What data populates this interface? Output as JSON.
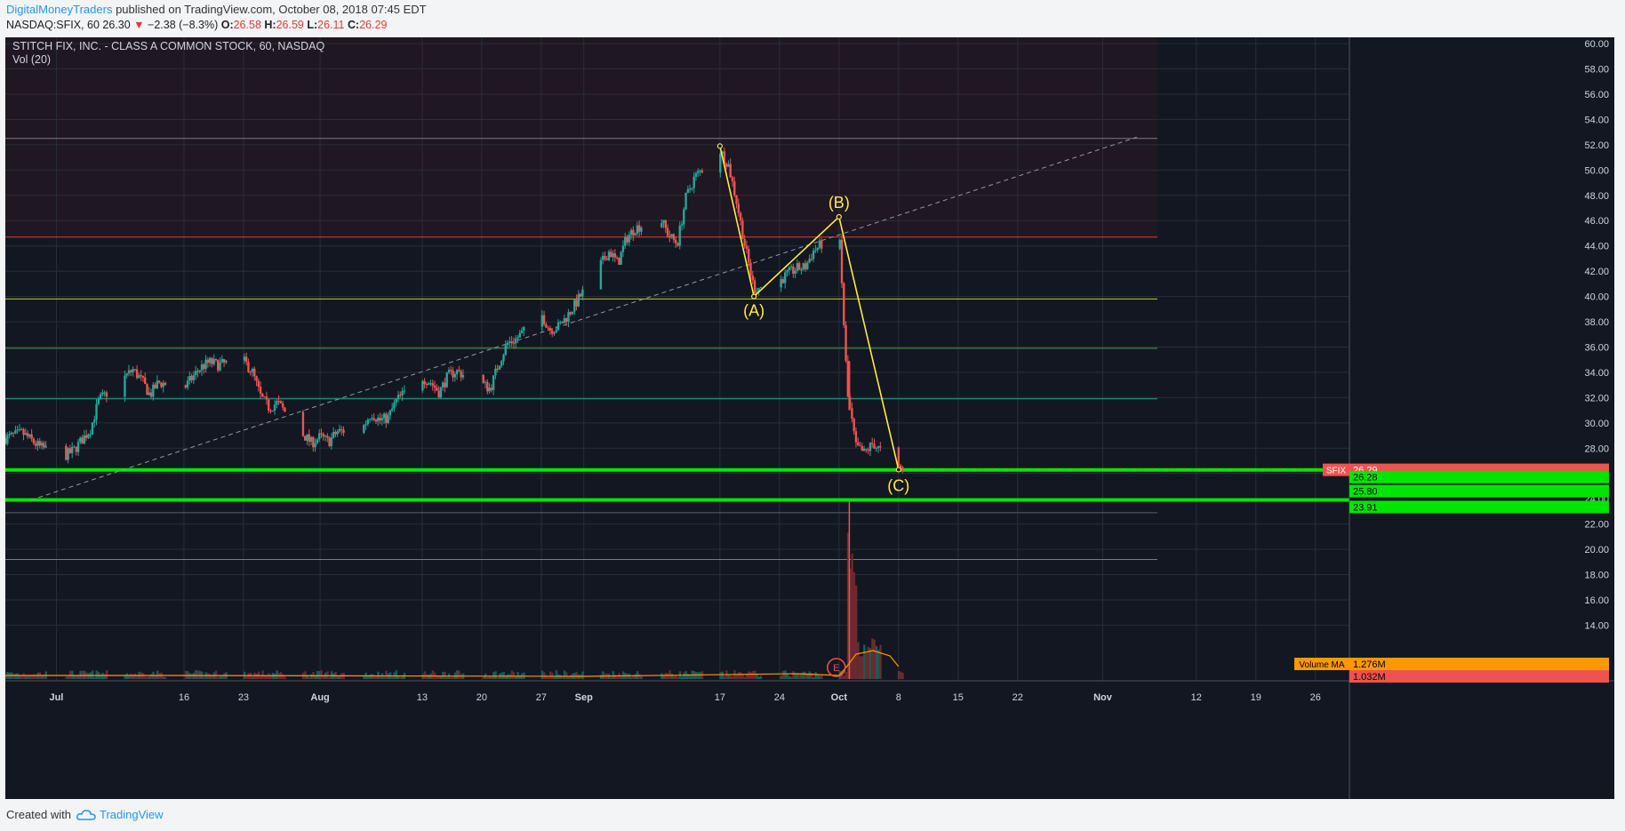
{
  "header": {
    "author": "DigitalMoneyTraders",
    "published": "published on TradingView.com, October 08, 2018 07:45 EDT",
    "symbol": "NASDAQ:SFIX, 60",
    "last": "26.30",
    "change": "−2.38 (−8.3%)",
    "o_label": "O:",
    "o": "26.58",
    "h_label": "H:",
    "h": "26.59",
    "l_label": "L:",
    "l": "26.11",
    "c_label": "C:",
    "c": "26.29"
  },
  "footer": {
    "created_with": "Created with",
    "brand": "TradingView"
  },
  "colors": {
    "background": "#131722",
    "grid": "#2a2e39",
    "up": "#26a69a",
    "down": "#ef5350",
    "wave": "#ffeb3b",
    "support": "#00e600",
    "resistance": "#e53935",
    "text": "#d1d4dc"
  },
  "chart_data": {
    "type": "candlestick",
    "title": "STITCH FIX, INC. - CLASS A COMMON STOCK, 60, NASDAQ",
    "indicator": "Vol (20)",
    "ylim": [
      9.6,
      60.5
    ],
    "y_ticks": [
      "60.00",
      "58.00",
      "56.00",
      "54.00",
      "52.00",
      "50.00",
      "48.00",
      "46.00",
      "44.00",
      "42.00",
      "40.00",
      "38.00",
      "36.00",
      "34.00",
      "32.00",
      "30.00",
      "28.00",
      "26.00",
      "24.00",
      "22.00",
      "20.00",
      "18.00",
      "16.00",
      "14.00"
    ],
    "x_ticks": [
      {
        "label": "Jul",
        "date": "2018-07-01"
      },
      {
        "label": "16",
        "date": "2018-07-16"
      },
      {
        "label": "23",
        "date": "2018-07-23"
      },
      {
        "label": "Aug",
        "date": "2018-08-01"
      },
      {
        "label": "13",
        "date": "2018-08-13"
      },
      {
        "label": "20",
        "date": "2018-08-20"
      },
      {
        "label": "27",
        "date": "2018-08-27"
      },
      {
        "label": "Sep",
        "date": "2018-09-01"
      },
      {
        "label": "17",
        "date": "2018-09-17"
      },
      {
        "label": "24",
        "date": "2018-09-24"
      },
      {
        "label": "Oct",
        "date": "2018-10-01"
      },
      {
        "label": "8",
        "date": "2018-10-08"
      },
      {
        "label": "15",
        "date": "2018-10-15"
      },
      {
        "label": "22",
        "date": "2018-10-22"
      },
      {
        "label": "Nov",
        "date": "2018-11-01"
      },
      {
        "label": "12",
        "date": "2018-11-12"
      },
      {
        "label": "19",
        "date": "2018-11-19"
      },
      {
        "label": "26",
        "date": "2018-11-26"
      }
    ],
    "close_path": [
      [
        "2018-06-25",
        28.8
      ],
      [
        "2018-06-27",
        29.2
      ],
      [
        "2018-06-29",
        28.1
      ],
      [
        "2018-07-02",
        27.4
      ],
      [
        "2018-07-03",
        27.8
      ],
      [
        "2018-07-05",
        29.5
      ],
      [
        "2018-07-06",
        31.8
      ],
      [
        "2018-07-09",
        33.6
      ],
      [
        "2018-07-10",
        34.2
      ],
      [
        "2018-07-11",
        33.4
      ],
      [
        "2018-07-12",
        32.2
      ],
      [
        "2018-07-13",
        33.2
      ],
      [
        "2018-07-16",
        32.7
      ],
      [
        "2018-07-17",
        33.6
      ],
      [
        "2018-07-18",
        34.4
      ],
      [
        "2018-07-19",
        34.8
      ],
      [
        "2018-07-20",
        34.6
      ],
      [
        "2018-07-23",
        34.9
      ],
      [
        "2018-07-24",
        34.1
      ],
      [
        "2018-07-25",
        32.1
      ],
      [
        "2018-07-26",
        31.2
      ],
      [
        "2018-07-27",
        31.6
      ],
      [
        "2018-07-30",
        29.1
      ],
      [
        "2018-07-31",
        28.4
      ],
      [
        "2018-08-01",
        28.9
      ],
      [
        "2018-08-02",
        28.5
      ],
      [
        "2018-08-03",
        29.3
      ],
      [
        "2018-08-06",
        29.6
      ],
      [
        "2018-08-07",
        30.8
      ],
      [
        "2018-08-08",
        30.2
      ],
      [
        "2018-08-09",
        30.4
      ],
      [
        "2018-08-10",
        31.8
      ],
      [
        "2018-08-13",
        33.6
      ],
      [
        "2018-08-14",
        33.2
      ],
      [
        "2018-08-15",
        32.4
      ],
      [
        "2018-08-16",
        33.7
      ],
      [
        "2018-08-17",
        34.1
      ],
      [
        "2018-08-20",
        33.1
      ],
      [
        "2018-08-21",
        32.7
      ],
      [
        "2018-08-22",
        34.7
      ],
      [
        "2018-08-23",
        36.3
      ],
      [
        "2018-08-24",
        36.6
      ],
      [
        "2018-08-27",
        38.6
      ],
      [
        "2018-08-28",
        37.4
      ],
      [
        "2018-08-29",
        37.6
      ],
      [
        "2018-08-30",
        38.4
      ],
      [
        "2018-08-31",
        39.4
      ],
      [
        "2018-09-04",
        43.6
      ],
      [
        "2018-09-05",
        42.6
      ],
      [
        "2018-09-06",
        44.6
      ],
      [
        "2018-09-07",
        45.4
      ],
      [
        "2018-09-10",
        46.2
      ],
      [
        "2018-09-11",
        44.8
      ],
      [
        "2018-09-12",
        44.2
      ],
      [
        "2018-09-13",
        47.8
      ],
      [
        "2018-09-14",
        49.4
      ],
      [
        "2018-09-17",
        51.6
      ],
      [
        "2018-09-18",
        50.4
      ],
      [
        "2018-09-19",
        47.4
      ],
      [
        "2018-09-20",
        43.8
      ],
      [
        "2018-09-21",
        40.6
      ],
      [
        "2018-09-24",
        41.2
      ],
      [
        "2018-09-25",
        41.8
      ],
      [
        "2018-09-26",
        42.2
      ],
      [
        "2018-09-27",
        42.3
      ],
      [
        "2018-09-28",
        43.6
      ],
      [
        "2018-10-01",
        45.3
      ],
      [
        "2018-10-02",
        32.2
      ],
      [
        "2018-10-03",
        28.1
      ],
      [
        "2018-10-04",
        27.6
      ],
      [
        "2018-10-05",
        28.4
      ],
      [
        "2018-10-08",
        26.3
      ]
    ],
    "trendline": {
      "from": [
        "2018-06-28",
        23.9
      ],
      "to": [
        "2018-11-05",
        52.6
      ],
      "style": "dashed"
    },
    "horizontal_levels": [
      {
        "price": 52.5,
        "color": "#787b86"
      },
      {
        "price": 44.7,
        "color": "#e53935"
      },
      {
        "price": 39.8,
        "color": "#c0ca33"
      },
      {
        "price": 35.9,
        "color": "#43a047"
      },
      {
        "price": 31.9,
        "color": "#26a69a"
      },
      {
        "price": 26.28,
        "color": "#00e600",
        "thick": true
      },
      {
        "price": 23.91,
        "color": "#00e600",
        "thick": true
      },
      {
        "price": 22.9,
        "color": "#5d606b"
      },
      {
        "price": 19.2,
        "color": "#787b86"
      }
    ],
    "wave_points": [
      {
        "label": "",
        "date": "2018-09-17",
        "price": 51.9
      },
      {
        "label": "(A)",
        "date": "2018-09-21",
        "price": 40.0
      },
      {
        "label": "(B)",
        "date": "2018-10-01",
        "price": 46.3
      },
      {
        "label": "(C)",
        "date": "2018-10-08",
        "price": 26.3
      }
    ],
    "price_labels": [
      {
        "text": "SFIX",
        "value": "26.29",
        "color": "#ef5350"
      },
      {
        "text": "",
        "value": "26.28",
        "color": "#00e600"
      },
      {
        "text": "",
        "value": "25.80",
        "color": "#00e600"
      },
      {
        "text": "",
        "value": "23.91",
        "color": "#00e600"
      }
    ],
    "volume_labels": [
      {
        "text": "Volume MA",
        "value": "1.276M",
        "color": "#ff9800"
      },
      {
        "text": "",
        "value": "1.032M",
        "color": "#ef5350"
      }
    ],
    "earnings_marker": {
      "label": "E",
      "date": "2018-10-01"
    }
  }
}
